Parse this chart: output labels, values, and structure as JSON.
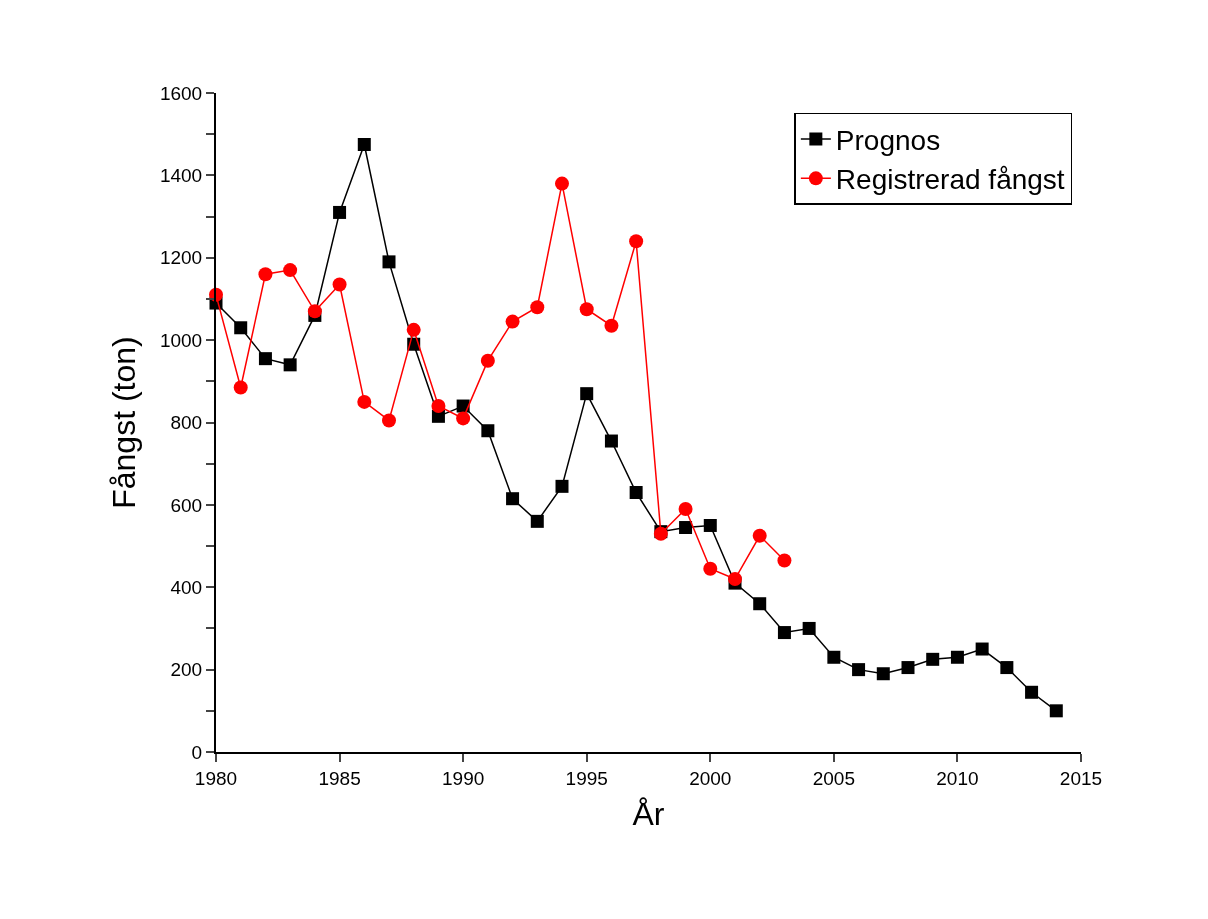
{
  "chart_data": {
    "type": "line",
    "xlabel": "År",
    "ylabel": "Fångst (ton)",
    "xlim": [
      1980,
      2015
    ],
    "xticks": [
      1980,
      1985,
      1990,
      1995,
      2000,
      2005,
      2010,
      2015
    ],
    "ylim": [
      0,
      1600
    ],
    "yticks": [
      0,
      {
        "value": 100,
        "label": null
      },
      200,
      {
        "value": 300,
        "label": null
      },
      400,
      {
        "value": 500,
        "label": null
      },
      600,
      {
        "value": 700,
        "label": null
      },
      800,
      {
        "value": 900,
        "label": null
      },
      1000,
      {
        "value": 1100,
        "label": null
      },
      1200,
      {
        "value": 1300,
        "label": null
      },
      1400,
      {
        "value": 1500,
        "label": null
      },
      1600
    ],
    "legend": "top right",
    "series": [
      {
        "name": "Prognos",
        "color": "#000000",
        "marker": "square",
        "x": [
          1980,
          1981,
          1982,
          1983,
          1984,
          1985,
          1986,
          1987,
          1988,
          1989,
          1990,
          1991,
          1992,
          1993,
          1994,
          1995,
          1996,
          1997,
          1998,
          1999,
          2000,
          2001,
          2002,
          2003,
          2004,
          2005,
          2006,
          2007,
          2008,
          2009,
          2010,
          2011,
          2012,
          2013,
          2014
        ],
        "values": [
          1090,
          1030,
          955,
          940,
          1060,
          1310,
          1475,
          1190,
          990,
          815,
          840,
          780,
          615,
          560,
          645,
          870,
          755,
          630,
          535,
          545,
          550,
          410,
          360,
          290,
          300,
          230,
          200,
          190,
          205,
          225,
          230,
          250,
          205,
          145,
          100
        ]
      },
      {
        "name": "Registrerad fångst",
        "color": "#ff0000",
        "marker": "circle",
        "x": [
          1980,
          1981,
          1982,
          1983,
          1984,
          1985,
          1986,
          1987,
          1988,
          1989,
          1990,
          1991,
          1992,
          1993,
          1994,
          1995,
          1996,
          1997,
          1998,
          1999,
          2000,
          2001,
          2002,
          2003
        ],
        "values": [
          1110,
          885,
          1160,
          1170,
          1070,
          1135,
          850,
          805,
          1025,
          840,
          810,
          950,
          1045,
          1080,
          1380,
          1075,
          1035,
          1240,
          530,
          590,
          445,
          420,
          525,
          465
        ]
      }
    ]
  }
}
